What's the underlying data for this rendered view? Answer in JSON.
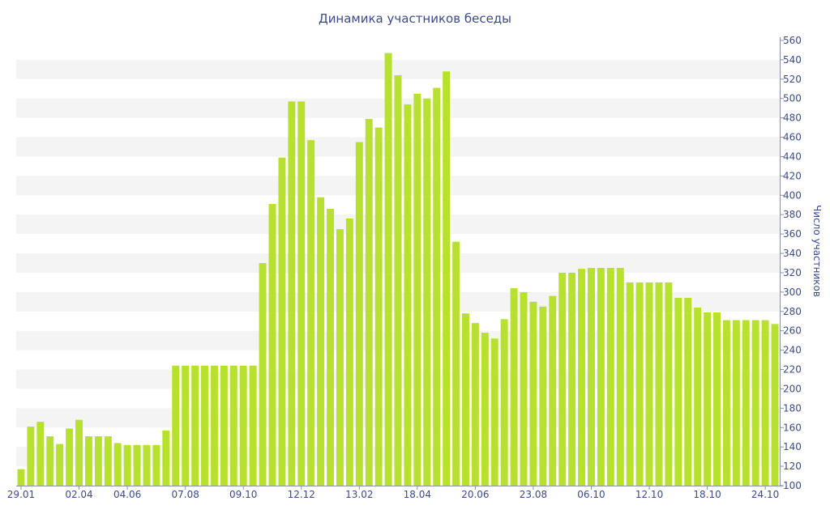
{
  "chart_data": {
    "type": "bar",
    "title": "Динамика участников беседы",
    "ylabel": "Число участников",
    "ylim": [
      100,
      560
    ],
    "y_ticks": [
      100,
      120,
      140,
      160,
      180,
      200,
      220,
      240,
      260,
      280,
      300,
      320,
      340,
      360,
      380,
      400,
      420,
      440,
      460,
      480,
      500,
      520,
      540,
      560
    ],
    "x_tick_labels": [
      {
        "index": 0,
        "label": "29.01"
      },
      {
        "index": 6,
        "label": "02.04"
      },
      {
        "index": 11,
        "label": "04.06"
      },
      {
        "index": 17,
        "label": "07.08"
      },
      {
        "index": 23,
        "label": "09.10"
      },
      {
        "index": 29,
        "label": "12.12"
      },
      {
        "index": 35,
        "label": "13.02"
      },
      {
        "index": 41,
        "label": "18.04"
      },
      {
        "index": 47,
        "label": "20.06"
      },
      {
        "index": 53,
        "label": "23.08"
      },
      {
        "index": 59,
        "label": "06.10"
      },
      {
        "index": 65,
        "label": "12.10"
      },
      {
        "index": 71,
        "label": "18.10"
      },
      {
        "index": 77,
        "label": "24.10"
      }
    ],
    "values": [
      117,
      161,
      166,
      151,
      143,
      159,
      168,
      151,
      151,
      151,
      144,
      142,
      142,
      142,
      142,
      157,
      224,
      224,
      224,
      224,
      224,
      224,
      224,
      224,
      224,
      330,
      391,
      439,
      497,
      497,
      457,
      398,
      386,
      365,
      376,
      455,
      479,
      470,
      547,
      524,
      494,
      505,
      500,
      511,
      528,
      352,
      278,
      268,
      258,
      252,
      272,
      304,
      300,
      290,
      285,
      296,
      320,
      320,
      324,
      325,
      325,
      325,
      325,
      310,
      310,
      310,
      310,
      310,
      294,
      294,
      284,
      279,
      279,
      271,
      271,
      271,
      271,
      271,
      267
    ],
    "bar_color": "#b8e02e",
    "grid": "alternating horizontal bands",
    "y_axis_side": "right"
  }
}
